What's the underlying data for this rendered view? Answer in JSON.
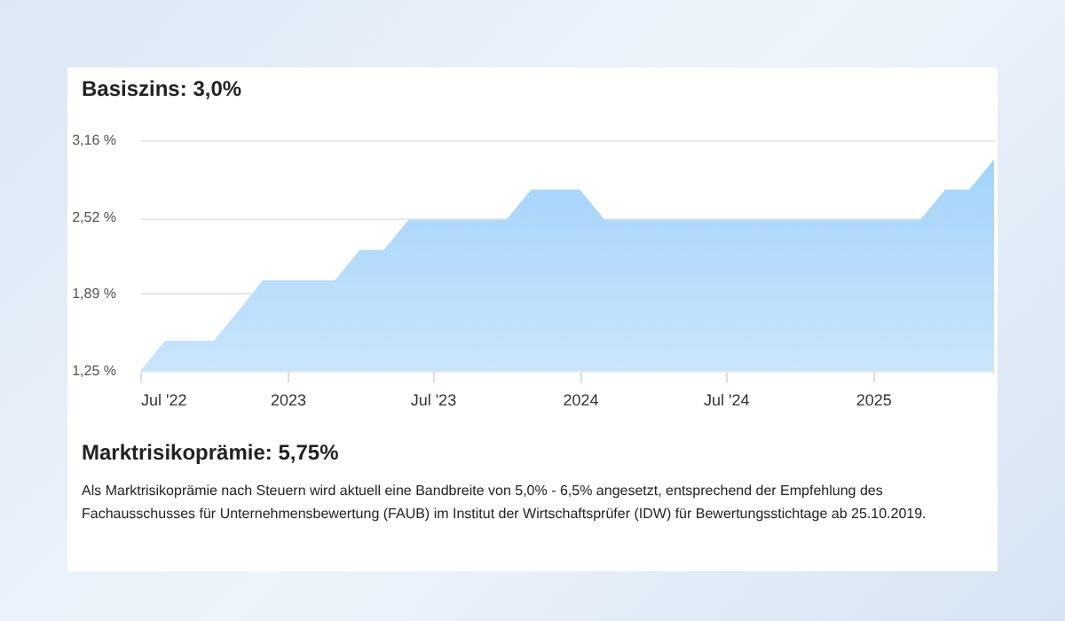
{
  "chart_data": {
    "type": "area",
    "title": "Basiszins: 3,0%",
    "x": [
      "2022-07",
      "2022-08",
      "2022-09",
      "2022-10",
      "2022-11",
      "2022-12",
      "2023-01",
      "2023-02",
      "2023-03",
      "2023-04",
      "2023-05",
      "2023-06",
      "2023-07",
      "2023-08",
      "2023-09",
      "2023-10",
      "2023-11",
      "2023-12",
      "2024-01",
      "2024-02",
      "2024-03",
      "2024-04",
      "2024-05",
      "2024-06",
      "2024-07",
      "2024-08",
      "2024-09",
      "2024-10",
      "2024-11",
      "2024-12",
      "2025-01",
      "2025-02",
      "2025-03",
      "2025-04",
      "2025-05",
      "2025-06"
    ],
    "series": [
      {
        "color": "#a3d3fa",
        "values": [
          1.25,
          1.5,
          1.5,
          1.5,
          1.75,
          2.0,
          2.0,
          2.0,
          2.0,
          2.25,
          2.25,
          2.5,
          2.5,
          2.5,
          2.5,
          2.5,
          2.75,
          2.75,
          2.75,
          2.5,
          2.5,
          2.5,
          2.5,
          2.5,
          2.5,
          2.5,
          2.5,
          2.5,
          2.5,
          2.5,
          2.5,
          2.5,
          2.5,
          2.75,
          2.75,
          3.0
        ]
      }
    ],
    "xlim": [
      "2022-07",
      "2025-06"
    ],
    "xticks": [
      {
        "value": "2022-07",
        "label": "Jul '22"
      },
      {
        "value": "2023-01",
        "label": "2023"
      },
      {
        "value": "2023-07",
        "label": "Jul '23"
      },
      {
        "value": "2024-01",
        "label": "2024"
      },
      {
        "value": "2024-07",
        "label": "Jul '24"
      },
      {
        "value": "2025-01",
        "label": "2025"
      }
    ],
    "ylim": [
      1.25,
      3.16
    ],
    "yticks": [
      {
        "value": 1.25,
        "label": "1,25 %"
      },
      {
        "value": 1.89,
        "label": "1,89 %"
      },
      {
        "value": 2.52,
        "label": "2,52 %"
      },
      {
        "value": 3.16,
        "label": "3,16 %"
      }
    ],
    "grid": "y",
    "annotations": [
      "Marktrisikoprämie: 5,75%",
      "Als Marktrisikoprämie nach Steuern wird aktuell eine Bandbreite von 5,0% - 6,5% angesetzt, entsprechend der Empfehlung des Fachausschusses für Unternehmensbewertung (FAUB) im Institut der Wirtschaftsprüfer (IDW) für Bewertungsstichtage ab 25.10.2019."
    ]
  }
}
